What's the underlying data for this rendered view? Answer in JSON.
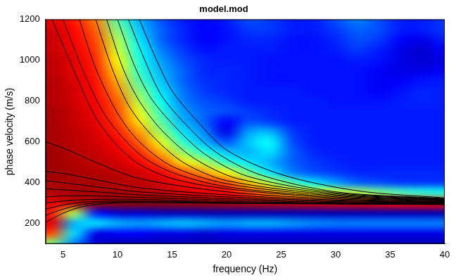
{
  "chart_data": {
    "type": "heatmap",
    "title": "model.mod",
    "x_label": "frequency (Hz)",
    "y_label": "phase velocity (m/s)",
    "xlim": [
      3.4,
      40
    ],
    "ylim": [
      100,
      1200
    ],
    "xticks": [
      5,
      10,
      15,
      20,
      25,
      30,
      35,
      40
    ],
    "yticks": [
      200,
      400,
      600,
      800,
      1000,
      1200
    ],
    "grid": false,
    "color": "jet",
    "cells": {
      "x": [
        4,
        6,
        8,
        10,
        12,
        14,
        16,
        18,
        20,
        22,
        24,
        26,
        28,
        30,
        32,
        34,
        36,
        38,
        40
      ],
      "y": [
        1200,
        1150,
        1100,
        1050,
        1000,
        950,
        900,
        850,
        800,
        750,
        700,
        650,
        600,
        550,
        500,
        450,
        400,
        350,
        300,
        250,
        200,
        150,
        100
      ],
      "values": [
        [
          0.9,
          0.85,
          0.75,
          0.45,
          0.3,
          0.2,
          0.15,
          0.12,
          0.15,
          0.2,
          0.18,
          0.15,
          0.15,
          0.2,
          0.25,
          0.2,
          0.15,
          0.15,
          0.18
        ],
        [
          0.92,
          0.87,
          0.78,
          0.5,
          0.32,
          0.22,
          0.16,
          0.12,
          0.14,
          0.18,
          0.18,
          0.15,
          0.15,
          0.18,
          0.22,
          0.2,
          0.15,
          0.15,
          0.18
        ],
        [
          0.93,
          0.88,
          0.8,
          0.55,
          0.35,
          0.22,
          0.16,
          0.12,
          0.14,
          0.16,
          0.16,
          0.14,
          0.14,
          0.16,
          0.2,
          0.18,
          0.12,
          0.1,
          0.15
        ],
        [
          0.93,
          0.89,
          0.82,
          0.58,
          0.38,
          0.25,
          0.18,
          0.14,
          0.15,
          0.15,
          0.15,
          0.14,
          0.14,
          0.15,
          0.18,
          0.15,
          0.1,
          0.08,
          0.12
        ],
        [
          0.94,
          0.9,
          0.84,
          0.62,
          0.4,
          0.28,
          0.2,
          0.16,
          0.15,
          0.15,
          0.14,
          0.14,
          0.14,
          0.14,
          0.15,
          0.14,
          0.1,
          0.08,
          0.1
        ],
        [
          0.94,
          0.9,
          0.85,
          0.66,
          0.42,
          0.3,
          0.22,
          0.16,
          0.16,
          0.15,
          0.14,
          0.14,
          0.14,
          0.14,
          0.14,
          0.12,
          0.1,
          0.1,
          0.12
        ],
        [
          0.95,
          0.91,
          0.86,
          0.7,
          0.45,
          0.32,
          0.22,
          0.17,
          0.16,
          0.15,
          0.14,
          0.14,
          0.14,
          0.14,
          0.14,
          0.12,
          0.12,
          0.14,
          0.15
        ],
        [
          0.95,
          0.92,
          0.87,
          0.74,
          0.5,
          0.35,
          0.24,
          0.18,
          0.16,
          0.15,
          0.15,
          0.15,
          0.14,
          0.14,
          0.14,
          0.12,
          0.14,
          0.16,
          0.15
        ],
        [
          0.95,
          0.92,
          0.88,
          0.78,
          0.55,
          0.38,
          0.25,
          0.2,
          0.18,
          0.15,
          0.15,
          0.15,
          0.15,
          0.14,
          0.14,
          0.14,
          0.15,
          0.16,
          0.15
        ],
        [
          0.96,
          0.93,
          0.89,
          0.8,
          0.6,
          0.42,
          0.28,
          0.22,
          0.2,
          0.18,
          0.16,
          0.15,
          0.15,
          0.15,
          0.15,
          0.15,
          0.15,
          0.15,
          0.15
        ],
        [
          0.96,
          0.93,
          0.9,
          0.82,
          0.65,
          0.46,
          0.3,
          0.22,
          0.12,
          0.2,
          0.18,
          0.15,
          0.15,
          0.15,
          0.15,
          0.15,
          0.15,
          0.15,
          0.15
        ],
        [
          0.96,
          0.94,
          0.91,
          0.85,
          0.72,
          0.52,
          0.35,
          0.25,
          0.1,
          0.28,
          0.3,
          0.18,
          0.15,
          0.15,
          0.15,
          0.15,
          0.15,
          0.15,
          0.15
        ],
        [
          0.96,
          0.94,
          0.92,
          0.88,
          0.78,
          0.6,
          0.42,
          0.3,
          0.2,
          0.32,
          0.38,
          0.2,
          0.15,
          0.15,
          0.15,
          0.15,
          0.15,
          0.15,
          0.15
        ],
        [
          0.97,
          0.95,
          0.93,
          0.9,
          0.84,
          0.7,
          0.52,
          0.4,
          0.32,
          0.3,
          0.35,
          0.22,
          0.16,
          0.15,
          0.15,
          0.15,
          0.15,
          0.15,
          0.15
        ],
        [
          0.97,
          0.95,
          0.94,
          0.92,
          0.88,
          0.8,
          0.65,
          0.55,
          0.42,
          0.35,
          0.3,
          0.22,
          0.18,
          0.16,
          0.15,
          0.15,
          0.15,
          0.15,
          0.15
        ],
        [
          0.97,
          0.96,
          0.95,
          0.94,
          0.92,
          0.88,
          0.8,
          0.72,
          0.62,
          0.48,
          0.35,
          0.25,
          0.2,
          0.18,
          0.16,
          0.16,
          0.16,
          0.16,
          0.16
        ],
        [
          0.96,
          0.96,
          0.96,
          0.95,
          0.94,
          0.92,
          0.88,
          0.85,
          0.8,
          0.68,
          0.55,
          0.45,
          0.35,
          0.28,
          0.22,
          0.2,
          0.18,
          0.18,
          0.18
        ],
        [
          0.95,
          0.96,
          0.96,
          0.96,
          0.95,
          0.94,
          0.92,
          0.9,
          0.88,
          0.82,
          0.75,
          0.68,
          0.62,
          0.58,
          0.55,
          0.5,
          0.45,
          0.42,
          0.4
        ],
        [
          0.9,
          0.94,
          0.97,
          0.98,
          0.98,
          0.98,
          0.97,
          0.96,
          0.95,
          0.94,
          0.93,
          0.92,
          0.91,
          0.9,
          0.9,
          0.89,
          0.88,
          0.88,
          0.87
        ],
        [
          0.85,
          0.55,
          0.15,
          0.08,
          0.08,
          0.06,
          0.06,
          0.05,
          0.05,
          0.05,
          0.05,
          0.05,
          0.05,
          0.05,
          0.05,
          0.05,
          0.05,
          0.05,
          0.05
        ],
        [
          0.9,
          0.3,
          0.35,
          0.3,
          0.28,
          0.3,
          0.32,
          0.3,
          0.28,
          0.3,
          0.3,
          0.28,
          0.26,
          0.25,
          0.25,
          0.25,
          0.25,
          0.25,
          0.25
        ],
        [
          0.8,
          0.35,
          0.1,
          0.12,
          0.12,
          0.1,
          0.1,
          0.08,
          0.1,
          0.1,
          0.1,
          0.1,
          0.1,
          0.1,
          0.1,
          0.1,
          0.1,
          0.1,
          0.1
        ],
        [
          0.5,
          0.25,
          0.08,
          0.05,
          0.05,
          0.05,
          0.05,
          0.05,
          0.05,
          0.05,
          0.05,
          0.05,
          0.05,
          0.05,
          0.05,
          0.05,
          0.05,
          0.05,
          0.05
        ]
      ]
    },
    "series": [
      {
        "type": "line",
        "color": "#000000",
        "x": [
          3.4,
          5,
          7,
          10,
          15,
          20,
          30,
          40
        ],
        "values": [
          205,
          250,
          285,
          300,
          300,
          298,
          295,
          292
        ]
      },
      {
        "type": "line",
        "color": "#000000",
        "x": [
          3.4,
          5,
          7,
          10,
          15,
          20,
          30,
          40
        ],
        "values": [
          240,
          270,
          295,
          305,
          305,
          300,
          296,
          293
        ]
      },
      {
        "type": "line",
        "color": "#000000",
        "x": [
          3.4,
          5,
          7,
          10,
          15,
          20,
          30,
          40
        ],
        "values": [
          270,
          290,
          305,
          310,
          308,
          303,
          298,
          295
        ]
      },
      {
        "type": "line",
        "color": "#000000",
        "x": [
          3.4,
          5,
          8,
          12,
          20,
          30,
          40
        ],
        "values": [
          300,
          310,
          318,
          318,
          308,
          300,
          297
        ]
      },
      {
        "type": "line",
        "color": "#000000",
        "x": [
          3.4,
          5,
          8,
          12,
          20,
          30,
          40
        ],
        "values": [
          330,
          335,
          335,
          328,
          315,
          303,
          299
        ]
      },
      {
        "type": "line",
        "color": "#000000",
        "x": [
          3.4,
          5,
          8,
          12,
          20,
          30,
          40
        ],
        "values": [
          370,
          365,
          355,
          340,
          322,
          307,
          301
        ]
      },
      {
        "type": "line",
        "color": "#000000",
        "x": [
          3.4,
          5,
          8,
          12,
          20,
          30,
          40
        ],
        "values": [
          410,
          400,
          380,
          355,
          330,
          311,
          303
        ]
      },
      {
        "type": "line",
        "color": "#000000",
        "x": [
          3.4,
          5,
          8,
          12,
          20,
          30,
          40
        ],
        "values": [
          455,
          445,
          415,
          375,
          340,
          315,
          305
        ]
      },
      {
        "type": "line",
        "color": "#000000",
        "x": [
          3.4,
          5,
          8,
          12,
          20,
          30,
          40
        ],
        "values": [
          600,
          570,
          500,
          420,
          355,
          320,
          307
        ]
      },
      {
        "type": "line",
        "color": "#000000",
        "x": [
          4,
          6,
          8,
          10,
          12,
          15,
          20,
          30,
          40
        ],
        "values": [
          1200,
          950,
          720,
          580,
          490,
          420,
          370,
          325,
          310
        ]
      },
      {
        "type": "line",
        "color": "#000000",
        "x": [
          5,
          7,
          9,
          12,
          15,
          20,
          30,
          40
        ],
        "values": [
          1200,
          930,
          720,
          540,
          450,
          380,
          330,
          312
        ]
      },
      {
        "type": "line",
        "color": "#000000",
        "x": [
          6.5,
          8,
          10,
          12,
          15,
          20,
          30,
          40
        ],
        "values": [
          1200,
          960,
          740,
          600,
          480,
          395,
          335,
          314
        ]
      },
      {
        "type": "line",
        "color": "#000000",
        "x": [
          8,
          9.5,
          11,
          13,
          16,
          20,
          30,
          40
        ],
        "values": [
          1200,
          960,
          780,
          640,
          500,
          410,
          340,
          316
        ]
      },
      {
        "type": "line",
        "color": "#000000",
        "x": [
          9,
          10.5,
          12,
          14,
          17,
          21,
          30,
          40
        ],
        "values": [
          1200,
          960,
          800,
          660,
          520,
          420,
          345,
          318
        ]
      },
      {
        "type": "line",
        "color": "#000000",
        "x": [
          10,
          11.5,
          13,
          15,
          18,
          22,
          30,
          40
        ],
        "values": [
          1200,
          980,
          820,
          690,
          540,
          430,
          350,
          320
        ]
      },
      {
        "type": "line",
        "color": "#000000",
        "x": [
          11,
          12.5,
          14,
          16,
          19,
          23,
          30,
          40
        ],
        "values": [
          1200,
          1000,
          830,
          700,
          550,
          440,
          355,
          322
        ]
      },
      {
        "type": "line",
        "color": "#000000",
        "x": [
          12,
          13.5,
          15,
          17,
          20,
          25,
          32,
          40
        ],
        "values": [
          1200,
          1010,
          850,
          720,
          560,
          440,
          360,
          325
        ]
      }
    ]
  }
}
